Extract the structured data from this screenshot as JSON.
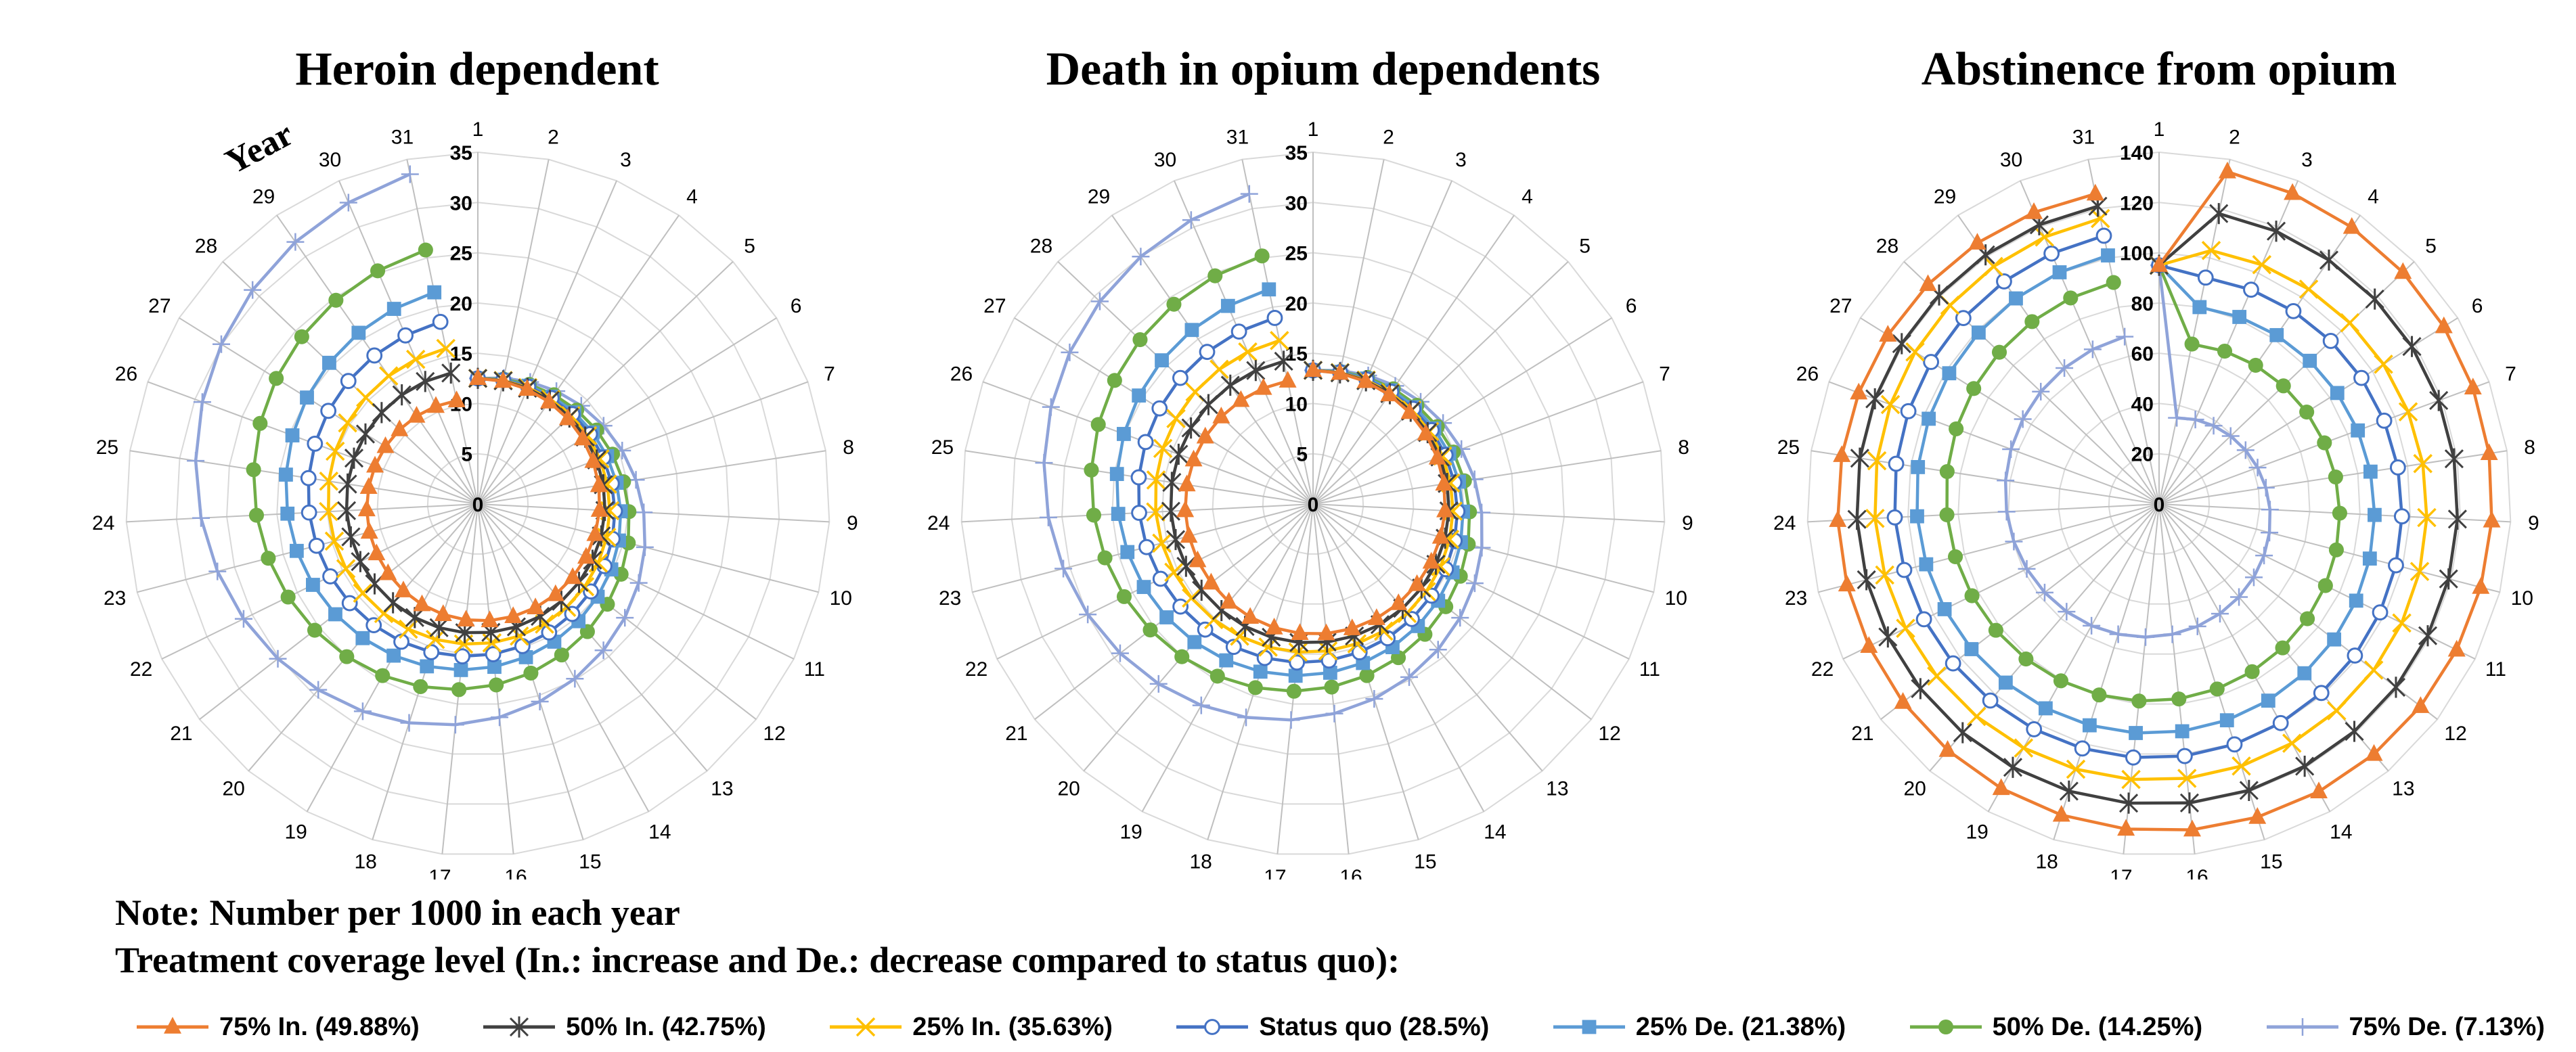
{
  "note": "Note: Number per 1000 in each year",
  "coverage_label": "Treatment coverage level (In.: increase and De.: decrease compared to status quo):",
  "colors": {
    "75pct_in": "#ED7D31",
    "50pct_in": "#404040",
    "25pct_in": "#FFC000",
    "status_quo": "#4472C4",
    "25pct_de": "#5B9BD5",
    "50pct_de": "#70AD47",
    "75pct_de": "#8FA3D9",
    "grid": "#D9D9D9",
    "spoke": "#BFBFBF"
  },
  "legend": [
    {
      "key": "75pct_in",
      "label": "75% In. (49.88%)",
      "marker": "triangle"
    },
    {
      "key": "50pct_in",
      "label": "50% In. (42.75%)",
      "marker": "star"
    },
    {
      "key": "25pct_in",
      "label": "25% In. (35.63%)",
      "marker": "x"
    },
    {
      "key": "status_quo",
      "label": "Status quo (28.5%)",
      "marker": "circle"
    },
    {
      "key": "25pct_de",
      "label": "25% De. (21.38%)",
      "marker": "square"
    },
    {
      "key": "50pct_de",
      "label": "50% De. (14.25%)",
      "marker": "dot"
    },
    {
      "key": "75pct_de",
      "label": "75% De. (7.13%)",
      "marker": "plus"
    }
  ],
  "chart_data": [
    {
      "type": "radar",
      "title": "Heroin dependent",
      "axis_label": "Year",
      "categories": [
        "1",
        "2",
        "3",
        "4",
        "5",
        "6",
        "7",
        "8",
        "9",
        "10",
        "11",
        "12",
        "13",
        "14",
        "15",
        "16",
        "17",
        "18",
        "19",
        "20",
        "21",
        "22",
        "23",
        "24",
        "25",
        "26",
        "27",
        "28",
        "29",
        "30",
        "31"
      ],
      "rlim": [
        0,
        35
      ],
      "ticks": [
        "0",
        "5",
        "10",
        "15",
        "20",
        "25",
        "30",
        "35"
      ],
      "series": [
        {
          "name": "75% In. (49.88%)",
          "key": "75pct_in",
          "start": 12.5,
          "end": 10.5
        },
        {
          "name": "50% In. (42.75%)",
          "key": "50pct_in",
          "start": 12.5,
          "end": 13.3
        },
        {
          "name": "25% In. (35.63%)",
          "key": "25pct_in",
          "start": 12.5,
          "end": 15.8
        },
        {
          "name": "Status quo (28.5%)",
          "key": "status_quo",
          "start": 12.5,
          "end": 18.5
        },
        {
          "name": "25% De. (21.38%)",
          "key": "25pct_de",
          "start": 12.5,
          "end": 21.5
        },
        {
          "name": "50% De. (14.25%)",
          "key": "50pct_de",
          "start": 12.5,
          "end": 25.8
        },
        {
          "name": "75% De. (7.13%)",
          "key": "75pct_de",
          "start": 12.5,
          "end": 33.5
        }
      ]
    },
    {
      "type": "radar",
      "title": "Death in opium dependents",
      "categories": [
        "1",
        "2",
        "3",
        "4",
        "5",
        "6",
        "7",
        "8",
        "9",
        "10",
        "11",
        "12",
        "13",
        "14",
        "15",
        "16",
        "17",
        "18",
        "19",
        "20",
        "21",
        "22",
        "23",
        "24",
        "25",
        "26",
        "27",
        "28",
        "29",
        "30",
        "31"
      ],
      "rlim": [
        0,
        35
      ],
      "ticks": [
        "0",
        "5",
        "10",
        "15",
        "20",
        "25",
        "30",
        "35"
      ],
      "series": [
        {
          "name": "75% In. (49.88%)",
          "key": "75pct_in",
          "start": 13.3,
          "end": 12.5
        },
        {
          "name": "50% In. (42.75%)",
          "key": "50pct_in",
          "start": 13.3,
          "end": 14.5
        },
        {
          "name": "25% In. (35.63%)",
          "key": "25pct_in",
          "start": 13.3,
          "end": 16.6
        },
        {
          "name": "Status quo (28.5%)",
          "key": "status_quo",
          "start": 13.3,
          "end": 18.9
        },
        {
          "name": "25% De. (21.38%)",
          "key": "25pct_de",
          "start": 13.3,
          "end": 21.8
        },
        {
          "name": "50% De. (14.25%)",
          "key": "50pct_de",
          "start": 13.3,
          "end": 25.2
        },
        {
          "name": "75% De. (7.13%)",
          "key": "75pct_de",
          "start": 13.3,
          "end": 31.5
        }
      ]
    },
    {
      "type": "radar",
      "title": "Abstinence from opium",
      "categories": [
        "1",
        "2",
        "3",
        "4",
        "5",
        "6",
        "7",
        "8",
        "9",
        "10",
        "11",
        "12",
        "13",
        "14",
        "15",
        "16",
        "17",
        "18",
        "19",
        "20",
        "21",
        "22",
        "23",
        "24",
        "25",
        "26",
        "27",
        "28",
        "29",
        "30",
        "31"
      ],
      "rlim": [
        0,
        140
      ],
      "ticks": [
        "0",
        "20",
        "40",
        "60",
        "80",
        "100",
        "120",
        "140"
      ],
      "series": [
        {
          "name": "75% In. (49.88%)",
          "key": "75pct_in",
          "start": 95,
          "peak": 135,
          "end": 126
        },
        {
          "name": "50% In. (42.75%)",
          "key": "50pct_in",
          "start": 95,
          "peak": 118,
          "end": 121
        },
        {
          "name": "25% In. (35.63%)",
          "key": "25pct_in",
          "start": 95,
          "peak": 103,
          "end": 116
        },
        {
          "name": "Status quo (28.5%)",
          "key": "status_quo",
          "start": 95,
          "peak": 92,
          "end": 109
        },
        {
          "name": "25% De. (21.38%)",
          "key": "25pct_de",
          "start": 95,
          "peak": 80,
          "end": 101
        },
        {
          "name": "50% De. (14.25%)",
          "key": "50pct_de",
          "start": 95,
          "peak": 65,
          "end": 90
        },
        {
          "name": "75% De. (7.13%)",
          "key": "75pct_de",
          "start": 95,
          "peak": 35,
          "end": 68
        }
      ]
    }
  ]
}
